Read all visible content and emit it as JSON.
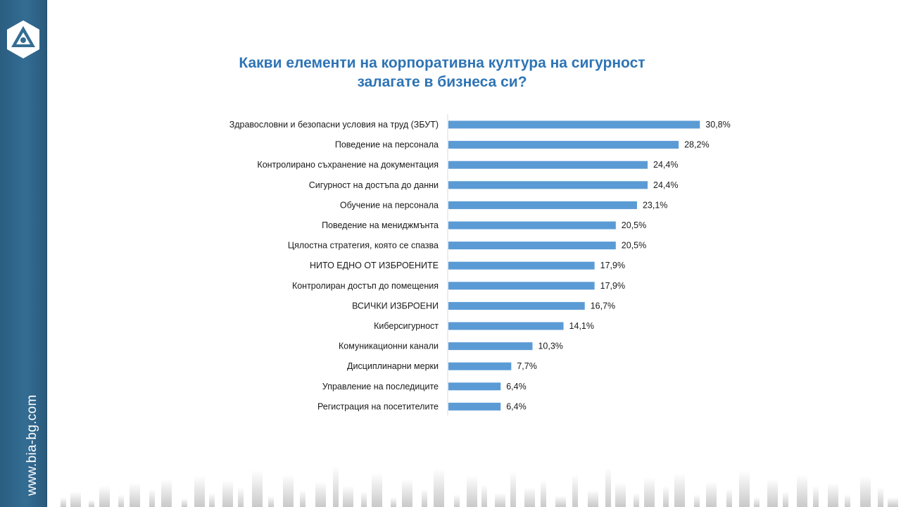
{
  "brand": {
    "site_url": "www.bia-bg.com",
    "logo_icon": "bia-triangle-logo-icon",
    "accent_color": "#2e74b5",
    "sidebar_color": "#336d93"
  },
  "chart_data": {
    "type": "bar",
    "orientation": "horizontal",
    "title_line1": "Какви елементи на корпоративна култура на сигурност",
    "title_line2": "залагате в бизнеса си?",
    "bar_color": "#5b9bd5",
    "value_suffix": "%",
    "decimal_separator": ",",
    "grid": false,
    "legend": "none",
    "xlim": [
      0,
      38
    ],
    "categories": [
      "Здравословни  и безопасни  условия  на труд  (ЗБУТ)",
      "Поведение  на персонала",
      "Контролирано  съхранение  на документация",
      "Сигурност  на достъпа до данни",
      "Обучение  на персонала",
      "Поведение  на мениджмънта",
      "Цялостна  стратегия,  която  се спазва",
      "НИТО  ЕДНО  ОТ ИЗБРОЕНИТЕ",
      "Контролиран  достъп до помещения",
      "ВСИЧКИ  ИЗБРОЕНИ",
      "Киберсигурност",
      "Комуникационни  канали",
      "Дисциплинарни  мерки",
      "Управление  на последиците",
      "Регистрация  на посетителите"
    ],
    "values": [
      30.8,
      28.2,
      24.4,
      24.4,
      23.1,
      20.5,
      20.5,
      17.9,
      17.9,
      16.7,
      14.1,
      10.3,
      7.7,
      6.4,
      6.4
    ]
  }
}
